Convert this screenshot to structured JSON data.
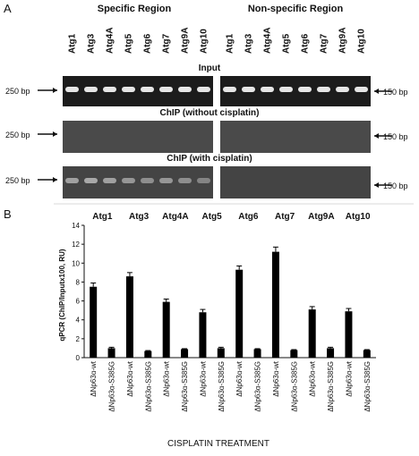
{
  "panel_a": {
    "letter": "A",
    "region_specific": "Specific Region",
    "region_nonspecific": "Non-specific Region",
    "lanes": [
      "Atg1",
      "Atg3",
      "Atg4A",
      "Atg5",
      "Atg6",
      "Atg7",
      "Atg9A",
      "Atg10"
    ],
    "input_title": "Input",
    "chip_without_title": "ChIP (without cisplatin)",
    "chip_with_title": "ChIP (with cisplatin)",
    "left_marker": "250 bp",
    "right_marker": "150 bp",
    "gel_input_left_intensity": [
      0.95,
      0.95,
      0.95,
      0.95,
      0.95,
      0.95,
      0.95,
      0.95
    ],
    "gel_input_right_intensity": [
      0.95,
      0.95,
      0.95,
      0.95,
      0.95,
      0.95,
      0.95,
      0.95
    ],
    "gel_cis_left_intensity": [
      0.55,
      0.6,
      0.55,
      0.5,
      0.45,
      0.5,
      0.45,
      0.4
    ],
    "gel_cis_right_intensity": [
      0,
      0,
      0,
      0,
      0,
      0,
      0,
      0
    ]
  },
  "panel_b": {
    "letter": "B",
    "xlabel": "CISPLATIN TREATMENT",
    "chart_data": {
      "type": "bar",
      "ylabel": "qPCR (ChIP/Inputx100, RU)",
      "ylim": [
        0,
        14
      ],
      "yticks": [
        0,
        2,
        4,
        6,
        8,
        10,
        12,
        14
      ],
      "groups": [
        "Atg1",
        "Atg3",
        "Atg4A",
        "Atg5",
        "Atg6",
        "Atg7",
        "Atg9A",
        "Atg10"
      ],
      "categories": [
        "ΔNp63α-wt",
        "ΔNp63α-S385G",
        "ΔNp63α-wt",
        "ΔNp63α-S385G",
        "ΔNp63α-wt",
        "ΔNp63α-S385G",
        "ΔNp63α-wt",
        "ΔNp63α-S385G",
        "ΔNp63α-wt",
        "ΔNp63α-S385G",
        "ΔNp63α-wt",
        "ΔNp63α-S385G",
        "ΔNp63α-wt",
        "ΔNp63α-S385G",
        "ΔNp63α-wt",
        "ΔNp63α-S385G"
      ],
      "values": [
        7.5,
        1.0,
        8.6,
        0.7,
        5.9,
        0.9,
        4.8,
        1.0,
        9.3,
        0.9,
        11.2,
        0.8,
        5.1,
        1.0,
        4.9,
        0.8
      ],
      "errors": [
        0.4,
        0.1,
        0.4,
        0.05,
        0.3,
        0.05,
        0.3,
        0.1,
        0.4,
        0.05,
        0.5,
        0.05,
        0.3,
        0.1,
        0.3,
        0.05
      ]
    }
  }
}
